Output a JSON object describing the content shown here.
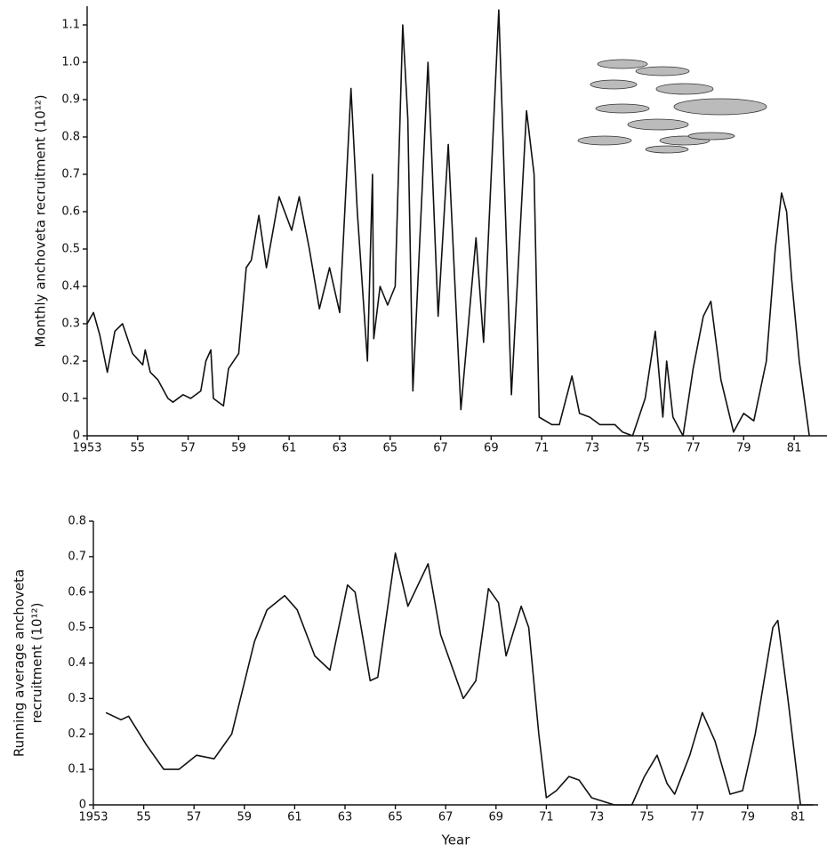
{
  "chart_data": [
    {
      "type": "line",
      "ylabel": "Monthly anchoveta recruitment (10¹²)",
      "color": "#111111",
      "xlim": [
        1953,
        1982.3
      ],
      "ylim": [
        0,
        1.15
      ],
      "xticks": [
        1953,
        {
          "value": 1955,
          "label": "55"
        },
        {
          "value": 1957,
          "label": "57"
        },
        {
          "value": 1959,
          "label": "59"
        },
        {
          "value": 1961,
          "label": "61"
        },
        {
          "value": 1963,
          "label": "63"
        },
        {
          "value": 1965,
          "label": "65"
        },
        {
          "value": 1967,
          "label": "67"
        },
        {
          "value": 1969,
          "label": "69"
        },
        {
          "value": 1971,
          "label": "71"
        },
        {
          "value": 1973,
          "label": "73"
        },
        {
          "value": 1975,
          "label": "75"
        },
        {
          "value": 1977,
          "label": "77"
        },
        {
          "value": 1979,
          "label": "79"
        },
        {
          "value": 1981,
          "label": "81"
        }
      ],
      "yticks": [
        0,
        0.1,
        0.2,
        0.3,
        0.4,
        0.5,
        0.6,
        0.7,
        0.8,
        0.9,
        {
          "value": 1,
          "label": "1.0"
        },
        1.1
      ],
      "x": [
        1953.0,
        1953.25,
        1953.5,
        1953.8,
        1954.1,
        1954.4,
        1954.8,
        1955.2,
        1955.3,
        1955.5,
        1955.8,
        1956.2,
        1956.4,
        1956.8,
        1957.1,
        1957.5,
        1957.7,
        1957.9,
        1958.0,
        1958.4,
        1958.6,
        1959.0,
        1959.3,
        1959.5,
        1959.8,
        1960.1,
        1960.6,
        1961.1,
        1961.4,
        1961.8,
        1962.2,
        1962.6,
        1963.0,
        1963.45,
        1963.7,
        1964.1,
        1964.3,
        1964.35,
        1964.6,
        1964.9,
        1965.2,
        1965.5,
        1965.7,
        1965.9,
        1966.5,
        1966.9,
        1967.3,
        1967.8,
        1968.4,
        1968.7,
        1969.3,
        1969.8,
        1970.4,
        1970.7,
        1970.9,
        1971.4,
        1971.7,
        1972.2,
        1972.5,
        1972.9,
        1973.3,
        1973.9,
        1974.2,
        1974.6,
        1975.1,
        1975.5,
        1975.8,
        1975.95,
        1976.2,
        1976.6,
        1977.0,
        1977.4,
        1977.7,
        1978.1,
        1978.6,
        1979.0,
        1979.4,
        1979.9,
        1980.25,
        1980.5,
        1980.7,
        1980.9,
        1981.2,
        1981.6
      ],
      "values": [
        0.3,
        0.33,
        0.27,
        0.17,
        0.28,
        0.3,
        0.22,
        0.19,
        0.23,
        0.17,
        0.15,
        0.1,
        0.09,
        0.11,
        0.1,
        0.12,
        0.2,
        0.23,
        0.1,
        0.08,
        0.18,
        0.22,
        0.45,
        0.47,
        0.59,
        0.45,
        0.64,
        0.55,
        0.64,
        0.5,
        0.34,
        0.45,
        0.33,
        0.93,
        0.6,
        0.2,
        0.7,
        0.26,
        0.4,
        0.35,
        0.4,
        1.1,
        0.85,
        0.12,
        1.0,
        0.32,
        0.78,
        0.07,
        0.53,
        0.25,
        1.14,
        0.11,
        0.87,
        0.7,
        0.05,
        0.03,
        0.03,
        0.16,
        0.06,
        0.05,
        0.03,
        0.03,
        0.01,
        0.0,
        0.1,
        0.28,
        0.05,
        0.2,
        0.05,
        0.0,
        0.18,
        0.32,
        0.36,
        0.15,
        0.01,
        0.06,
        0.04,
        0.2,
        0.5,
        0.65,
        0.6,
        0.42,
        0.2,
        0.0
      ]
    },
    {
      "type": "line",
      "ylabel": [
        "Running average anchoveta",
        "recruitment (10¹²)"
      ],
      "xlabel": "Year",
      "color": "#111111",
      "xlim": [
        1953,
        1981.8
      ],
      "ylim": [
        0,
        0.8
      ],
      "xticks": [
        1953,
        {
          "value": 1955,
          "label": "55"
        },
        {
          "value": 1957,
          "label": "57"
        },
        {
          "value": 1959,
          "label": "59"
        },
        {
          "value": 1961,
          "label": "61"
        },
        {
          "value": 1963,
          "label": "63"
        },
        {
          "value": 1965,
          "label": "65"
        },
        {
          "value": 1967,
          "label": "67"
        },
        {
          "value": 1969,
          "label": "69"
        },
        {
          "value": 1971,
          "label": "71"
        },
        {
          "value": 1973,
          "label": "73"
        },
        {
          "value": 1975,
          "label": "75"
        },
        {
          "value": 1977,
          "label": "77"
        },
        {
          "value": 1979,
          "label": "79"
        },
        {
          "value": 1981,
          "label": "81"
        }
      ],
      "yticks": [
        0,
        0.1,
        0.2,
        0.3,
        0.4,
        0.5,
        0.6,
        0.7,
        0.8
      ],
      "x": [
        1953.5,
        1954.1,
        1954.4,
        1955.1,
        1955.8,
        1956.4,
        1957.1,
        1957.8,
        1958.5,
        1959.4,
        1959.9,
        1960.6,
        1961.1,
        1961.8,
        1962.4,
        1963.1,
        1963.4,
        1964.0,
        1964.3,
        1965.0,
        1965.5,
        1966.3,
        1966.8,
        1967.7,
        1968.2,
        1968.7,
        1969.1,
        1969.4,
        1970.0,
        1970.3,
        1970.7,
        1971.0,
        1971.4,
        1971.9,
        1972.3,
        1972.8,
        1973.7,
        1974.4,
        1974.9,
        1975.4,
        1975.8,
        1976.1,
        1976.7,
        1977.2,
        1977.7,
        1978.3,
        1978.8,
        1979.3,
        1980.0,
        1980.2,
        1980.6,
        1981.1,
        1981.6
      ],
      "values": [
        0.26,
        0.24,
        0.25,
        0.17,
        0.1,
        0.1,
        0.14,
        0.13,
        0.2,
        0.46,
        0.55,
        0.59,
        0.55,
        0.42,
        0.38,
        0.62,
        0.6,
        0.35,
        0.36,
        0.71,
        0.56,
        0.68,
        0.48,
        0.3,
        0.35,
        0.61,
        0.57,
        0.42,
        0.56,
        0.5,
        0.2,
        0.02,
        0.04,
        0.08,
        0.07,
        0.02,
        0.0,
        0.0,
        0.08,
        0.14,
        0.06,
        0.03,
        0.14,
        0.26,
        0.18,
        0.03,
        0.04,
        0.2,
        0.5,
        0.52,
        0.3,
        0.0,
        0.0
      ]
    }
  ]
}
